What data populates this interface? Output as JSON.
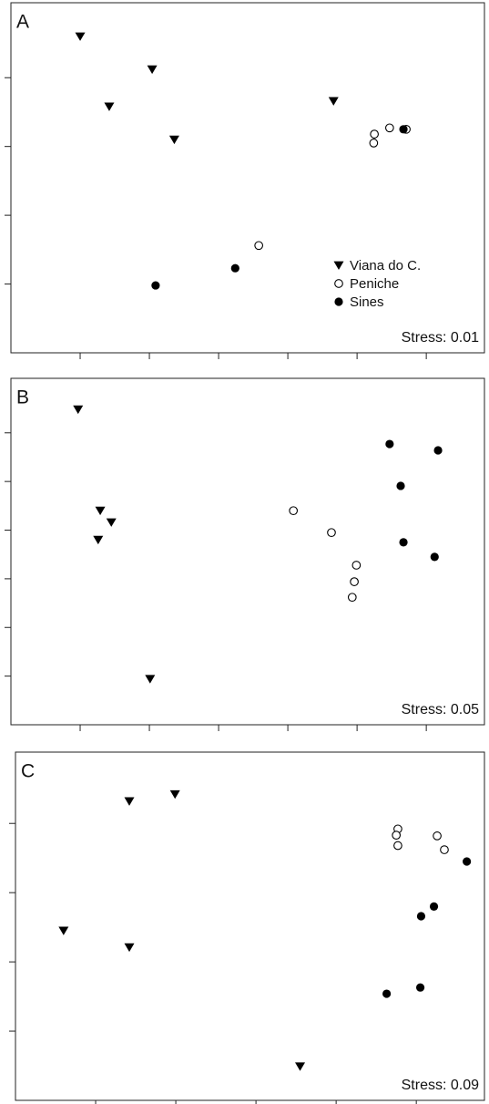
{
  "chart_data": [
    {
      "type": "scatter",
      "panel_label": "A",
      "annotation": "Stress: 0.01",
      "xlim": [
        0,
        6.84
      ],
      "ylim": [
        0,
        5.09
      ],
      "xticks": [
        1,
        2,
        3,
        4,
        5,
        6
      ],
      "yticks": [
        1,
        2,
        3,
        4
      ],
      "legend": "lower right",
      "series": [
        {
          "name": "Viana do C.",
          "color": "#000000",
          "marker": "triangle-down",
          "x": [
            1.0,
            2.04,
            1.42,
            2.36,
            4.66
          ],
          "values": [
            4.6,
            4.12,
            3.58,
            3.1,
            3.66
          ]
        },
        {
          "name": "Peniche",
          "color": "#000000",
          "marker": "circle-open",
          "x": [
            3.58,
            5.25,
            5.24,
            5.47,
            5.71
          ],
          "values": [
            1.56,
            3.18,
            3.05,
            3.27,
            3.25
          ]
        },
        {
          "name": "Sines",
          "color": "#000000",
          "marker": "circle",
          "x": [
            2.09,
            3.24,
            5.67
          ],
          "values": [
            0.98,
            1.23,
            3.25
          ]
        }
      ]
    },
    {
      "type": "scatter",
      "panel_label": "B",
      "annotation": "Stress: 0.05",
      "xlim": [
        0,
        6.84
      ],
      "ylim": [
        0,
        7.12
      ],
      "xticks": [
        1,
        2,
        3,
        4,
        5,
        6
      ],
      "yticks": [
        1,
        2,
        3,
        4,
        5,
        6
      ],
      "series": [
        {
          "color": "#000000",
          "marker": "triangle-down",
          "x": [
            0.97,
            1.29,
            1.45,
            1.26,
            2.01
          ],
          "values": [
            6.48,
            4.4,
            4.16,
            3.8,
            0.94
          ]
        },
        {
          "color": "#000000",
          "marker": "circle-open",
          "x": [
            4.08,
            4.63,
            4.99,
            4.96,
            4.93
          ],
          "values": [
            4.4,
            3.95,
            3.28,
            2.94,
            2.62
          ]
        },
        {
          "color": "#000000",
          "marker": "circle",
          "x": [
            5.47,
            6.17,
            5.63,
            5.67,
            6.12
          ],
          "values": [
            5.77,
            5.64,
            4.91,
            3.75,
            3.45
          ]
        }
      ]
    },
    {
      "type": "scatter",
      "panel_label": "C",
      "annotation": "Stress: 0.09",
      "xlim": [
        0,
        5.85
      ],
      "ylim": [
        0,
        5.03
      ],
      "xticks": [
        1,
        2,
        3,
        4,
        5
      ],
      "yticks": [
        1,
        2,
        3,
        4
      ],
      "series": [
        {
          "color": "#000000",
          "marker": "triangle-down",
          "x": [
            1.42,
            1.99,
            0.6,
            1.42,
            3.55
          ],
          "values": [
            4.32,
            4.42,
            2.45,
            2.21,
            0.49
          ]
        },
        {
          "color": "#000000",
          "marker": "circle-open",
          "x": [
            4.77,
            4.75,
            4.77,
            5.26,
            5.35
          ],
          "values": [
            3.92,
            3.83,
            3.68,
            3.82,
            3.62
          ]
        },
        {
          "color": "#000000",
          "marker": "circle",
          "x": [
            5.63,
            5.22,
            5.06,
            4.63,
            5.05
          ],
          "values": [
            3.45,
            2.8,
            2.66,
            1.54,
            1.63
          ]
        }
      ]
    }
  ]
}
